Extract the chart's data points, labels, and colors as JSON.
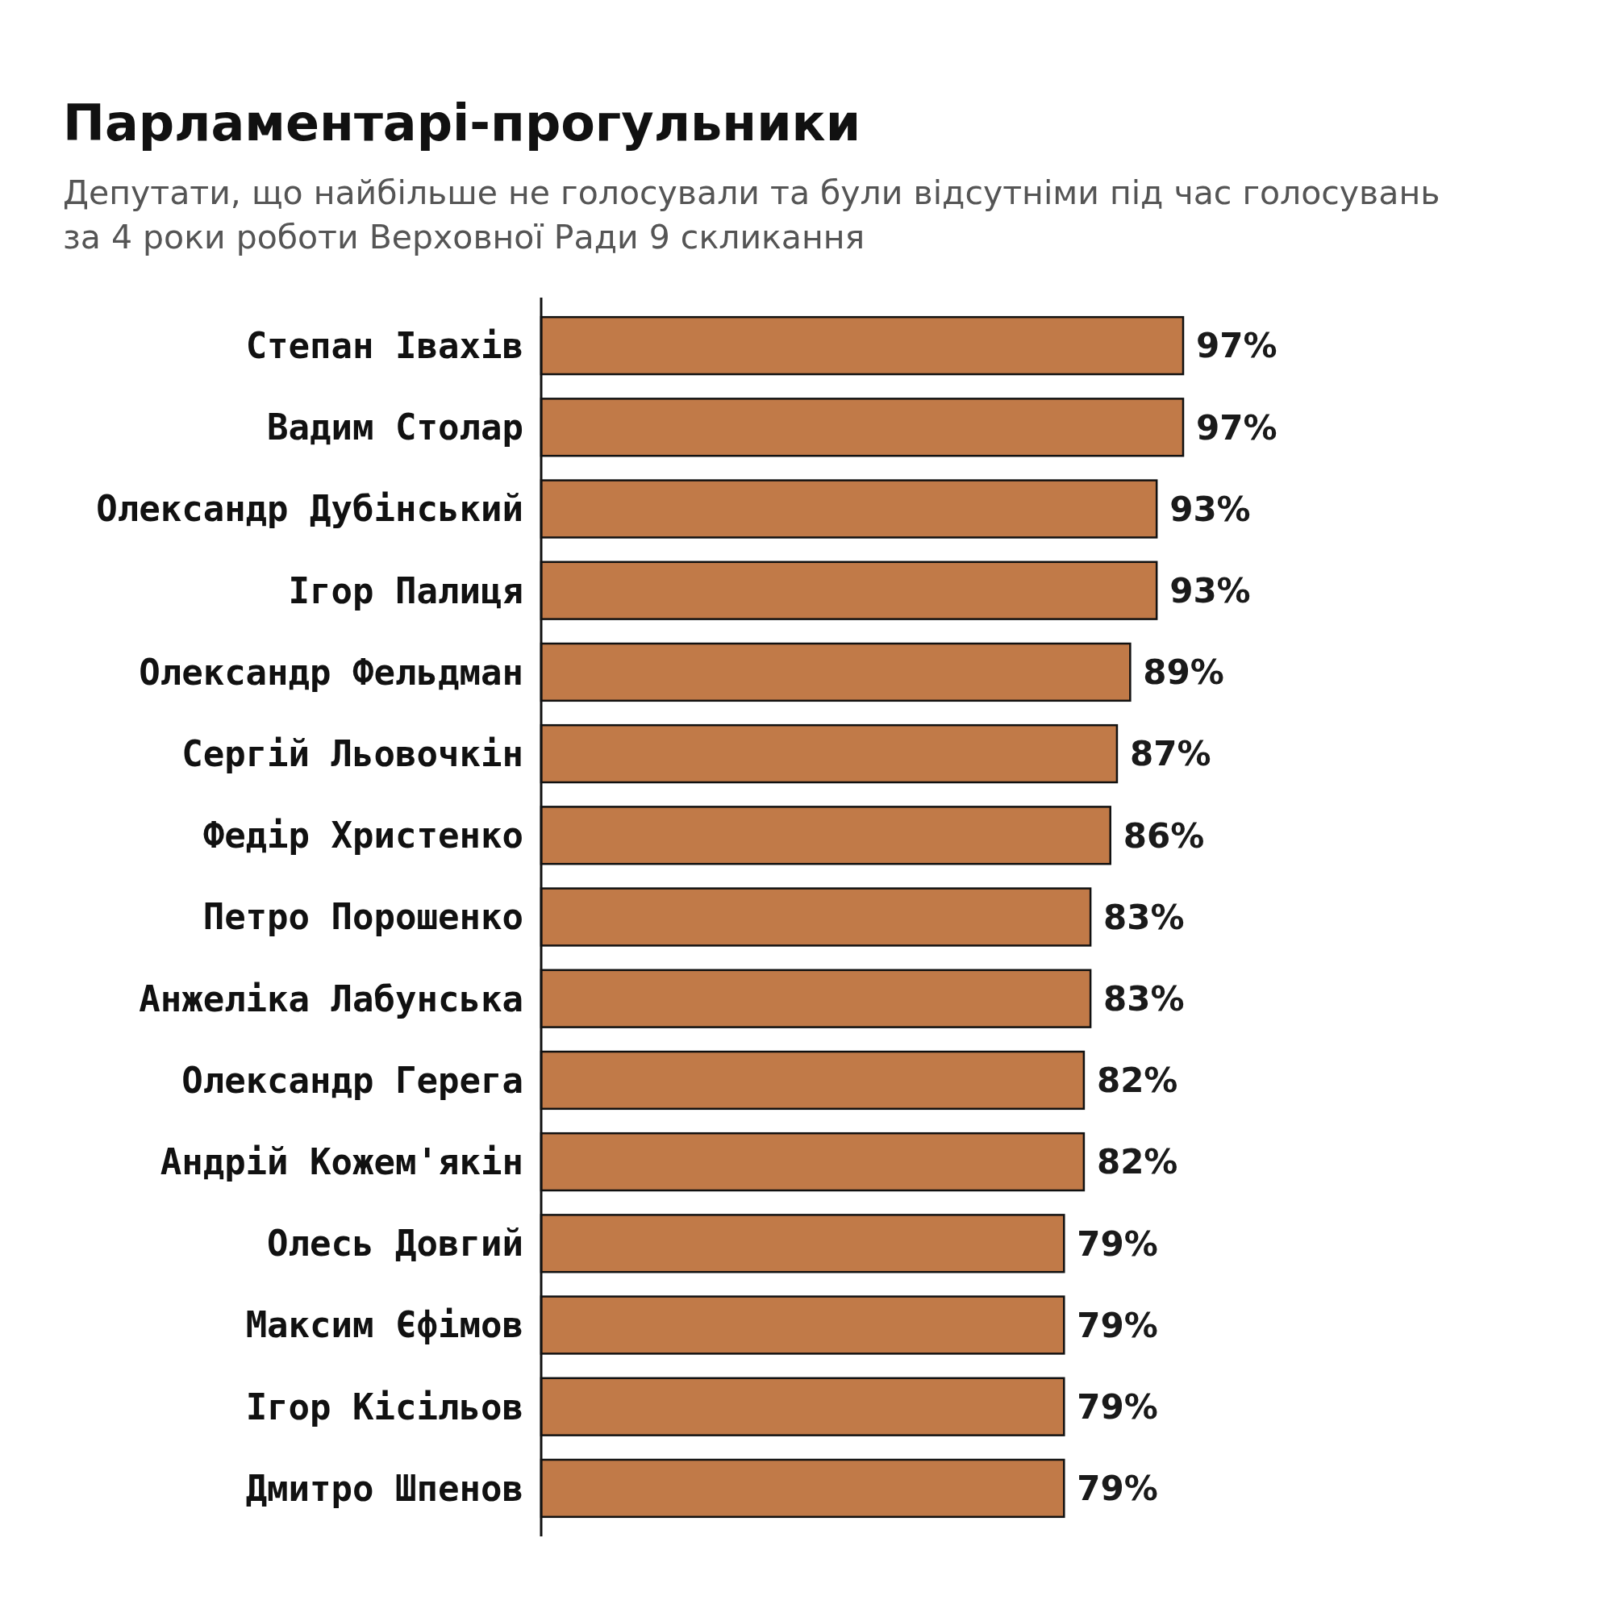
{
  "chart_data": {
    "type": "bar",
    "orientation": "horizontal",
    "title": "Парламентарі-прогульники",
    "subtitle": "Депутати, що найбільше не голосували та були відсутніми під час голосувань\nза 4 роки роботи Верховної Ради 9 скликання",
    "categories": [
      "Степан Івахів",
      "Вадим Столар",
      "Олександр Дубінський",
      "Ігор Палиця",
      "Олександр Фельдман",
      "Сергій Льовочкін",
      "Федір Христенко",
      "Петро Порошенко",
      "Анжеліка Лабунська",
      "Олександр Герега",
      "Андрій Кожем'якін",
      "Олесь Довгий",
      "Максим Єфімов",
      "Ігор Кісільов",
      "Дмитро Шпенов"
    ],
    "values": [
      97,
      97,
      93,
      93,
      89,
      87,
      86,
      83,
      83,
      82,
      82,
      79,
      79,
      79,
      79
    ],
    "value_labels": [
      "97%",
      "97%",
      "93%",
      "93%",
      "89%",
      "87%",
      "86%",
      "83%",
      "83%",
      "82%",
      "82%",
      "79%",
      "79%",
      "79%",
      "79%"
    ],
    "color": "#c17a48"
  }
}
